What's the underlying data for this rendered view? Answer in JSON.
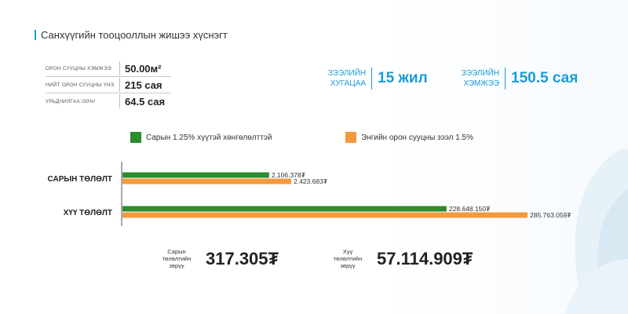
{
  "title": "Санхүүгийн тооцооллын жишээ хүснэгт",
  "specs": [
    {
      "label": "ОРОН СУУЦНЫ ХЭМЖЭЭ",
      "value": "50.00м²"
    },
    {
      "label": "НИЙТ ОРОН СУУЦНЫ ҮНЭ",
      "value": "215 сая"
    },
    {
      "label": "УРЬДЧИЛГАА /30%/",
      "value": "64.5 сая"
    }
  ],
  "loan_term": {
    "label_line1": "ЗЭЭЛИЙН",
    "label_line2": "ХУГАЦАА",
    "value": "15 жил"
  },
  "loan_amount": {
    "label_line1": "ЗЭЭЛИЙН",
    "label_line2": "ХЭМЖЭЭ",
    "value": "150.5 сая"
  },
  "colors": {
    "green": "#2e8b2e",
    "orange": "#f39a3c",
    "accent": "#1a9bd7"
  },
  "chart_data": {
    "type": "bar",
    "orientation": "horizontal",
    "categories": [
      "САРЫН ТӨЛӨЛТ",
      "ХҮҮ ТӨЛӨЛТ"
    ],
    "series": [
      {
        "name": "Сарын 1.25% хүүтэй хөнгөлөлттэй",
        "color": "#2e8b2e",
        "values": [
          2106378,
          228648150
        ],
        "labels": [
          "2.106.378₮",
          "228.648.150₮"
        ]
      },
      {
        "name": "Энгийн орон сууцны зээл 1.5%",
        "color": "#f39a3c",
        "values": [
          2423683,
          285763059
        ],
        "labels": [
          "2.423.683₮",
          "285.763.059₮"
        ]
      }
    ],
    "legend": "top"
  },
  "diffs": [
    {
      "label_line1": "Сарын",
      "label_line2": "төлөлтийн",
      "label_line3": "зөрүү",
      "value": "317.305₮"
    },
    {
      "label_line1": "Хүү",
      "label_line2": "төлөлтийн",
      "label_line3": "зөрүү",
      "value": "57.114.909₮"
    }
  ]
}
